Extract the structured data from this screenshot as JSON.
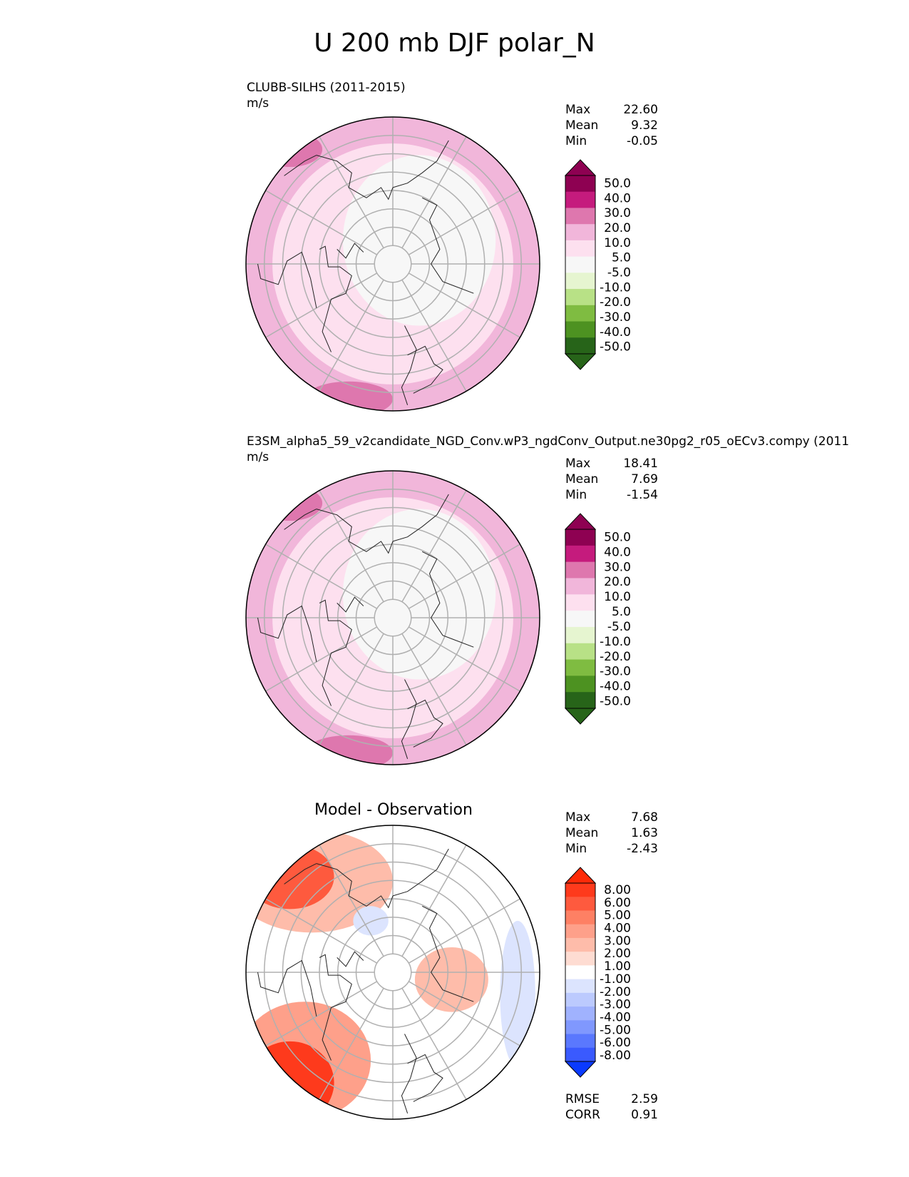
{
  "figure_title": "U 200 mb DJF polar_N",
  "chart_data": [
    {
      "type": "heatmap",
      "projection": "north-polar-stereographic",
      "title": "CLUBB-SILHS (2011-2015)",
      "units": "m/s",
      "stats": [
        {
          "label": "Max",
          "value": "22.60"
        },
        {
          "label": "Mean",
          "value": "9.32"
        },
        {
          "label": "Min",
          "value": "-0.05"
        }
      ],
      "colorbar": {
        "extend": "both",
        "levels": [
          "50.0",
          "40.0",
          "30.0",
          "20.0",
          "10.0",
          "5.0",
          "-5.0",
          "-10.0",
          "-20.0",
          "-30.0",
          "-40.0",
          "-50.0"
        ],
        "colors": [
          "#8e0152",
          "#c51b7d",
          "#de77ae",
          "#f1b6da",
          "#fde0ef",
          "#f7f7f7",
          "#e6f5d0",
          "#b8e186",
          "#7fbc41",
          "#4d9221",
          "#276419"
        ],
        "over_color": "#8e0152",
        "under_color": "#276419"
      }
    },
    {
      "type": "heatmap",
      "projection": "north-polar-stereographic",
      "title": "E3SM_alpha5_59_v2candidate_NGD_Conv.wP3_ngdConv_Output.ne30pg2_r05_oECv3.compy (2011",
      "units": "m/s",
      "stats": [
        {
          "label": "Max",
          "value": "18.41"
        },
        {
          "label": "Mean",
          "value": "7.69"
        },
        {
          "label": "Min",
          "value": "-1.54"
        }
      ],
      "colorbar": {
        "extend": "both",
        "levels": [
          "50.0",
          "40.0",
          "30.0",
          "20.0",
          "10.0",
          "5.0",
          "-5.0",
          "-10.0",
          "-20.0",
          "-30.0",
          "-40.0",
          "-50.0"
        ],
        "colors": [
          "#8e0152",
          "#c51b7d",
          "#de77ae",
          "#f1b6da",
          "#fde0ef",
          "#f7f7f7",
          "#e6f5d0",
          "#b8e186",
          "#7fbc41",
          "#4d9221",
          "#276419"
        ],
        "over_color": "#8e0152",
        "under_color": "#276419"
      }
    },
    {
      "type": "heatmap",
      "projection": "north-polar-stereographic",
      "title": "Model - Observation",
      "stats": [
        {
          "label": "Max",
          "value": "7.68"
        },
        {
          "label": "Mean",
          "value": "1.63"
        },
        {
          "label": "Min",
          "value": "-2.43"
        }
      ],
      "extra_stats": [
        {
          "label": "RMSE",
          "value": "2.59"
        },
        {
          "label": "CORR",
          "value": "0.91"
        }
      ],
      "colorbar": {
        "extend": "both",
        "levels": [
          "8.00",
          "6.00",
          "5.00",
          "4.00",
          "3.00",
          "2.00",
          "1.00",
          "-1.00",
          "-2.00",
          "-3.00",
          "-4.00",
          "-5.00",
          "-6.00",
          "-8.00"
        ],
        "colors": [
          "#fe3a1c",
          "#fe5a3e",
          "#fe8064",
          "#fea08a",
          "#febcaa",
          "#fedcd2",
          "#ffffff",
          "#dce4fe",
          "#bccafe",
          "#a0b2fe",
          "#8098fe",
          "#5a78fe",
          "#3a5afe"
        ],
        "over_color": "#fe2a08",
        "under_color": "#0a3afe"
      }
    }
  ]
}
